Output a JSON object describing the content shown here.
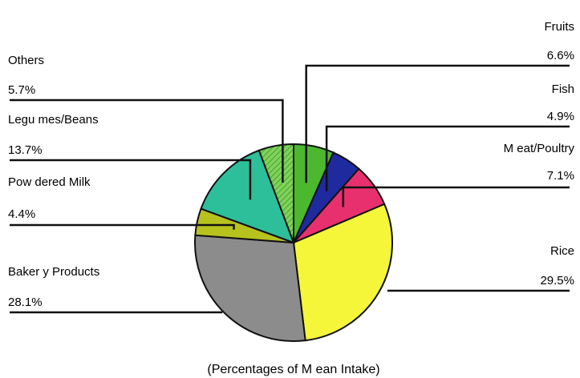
{
  "chart_data": {
    "type": "pie",
    "caption": "(Percentages of M ean Intake)",
    "slices": [
      {
        "name": "Fruits",
        "value": 6.6,
        "label": "6.6%",
        "color": "#4cb82e"
      },
      {
        "name": "Fish",
        "value": 4.9,
        "label": "4.9%",
        "color": "#1f2a9e"
      },
      {
        "name": "M eat/Poultry",
        "value": 7.1,
        "label": "7.1%",
        "color": "#e8306e"
      },
      {
        "name": "Rice",
        "value": 29.5,
        "label": "29.5%",
        "color": "#f5f53a"
      },
      {
        "name": "Baker y Products",
        "value": 28.1,
        "label": "28.1%",
        "color": "#8c8c8c"
      },
      {
        "name": "Pow dered Milk",
        "value": 4.4,
        "label": "4.4%",
        "color": "#b8c21e"
      },
      {
        "name": "Legu mes/Beans",
        "value": 13.7,
        "label": "13.7%",
        "color": "#2dbf9a"
      },
      {
        "name": "Others",
        "value": 5.7,
        "label": "5.7%",
        "color": "#7ed35a"
      }
    ]
  }
}
